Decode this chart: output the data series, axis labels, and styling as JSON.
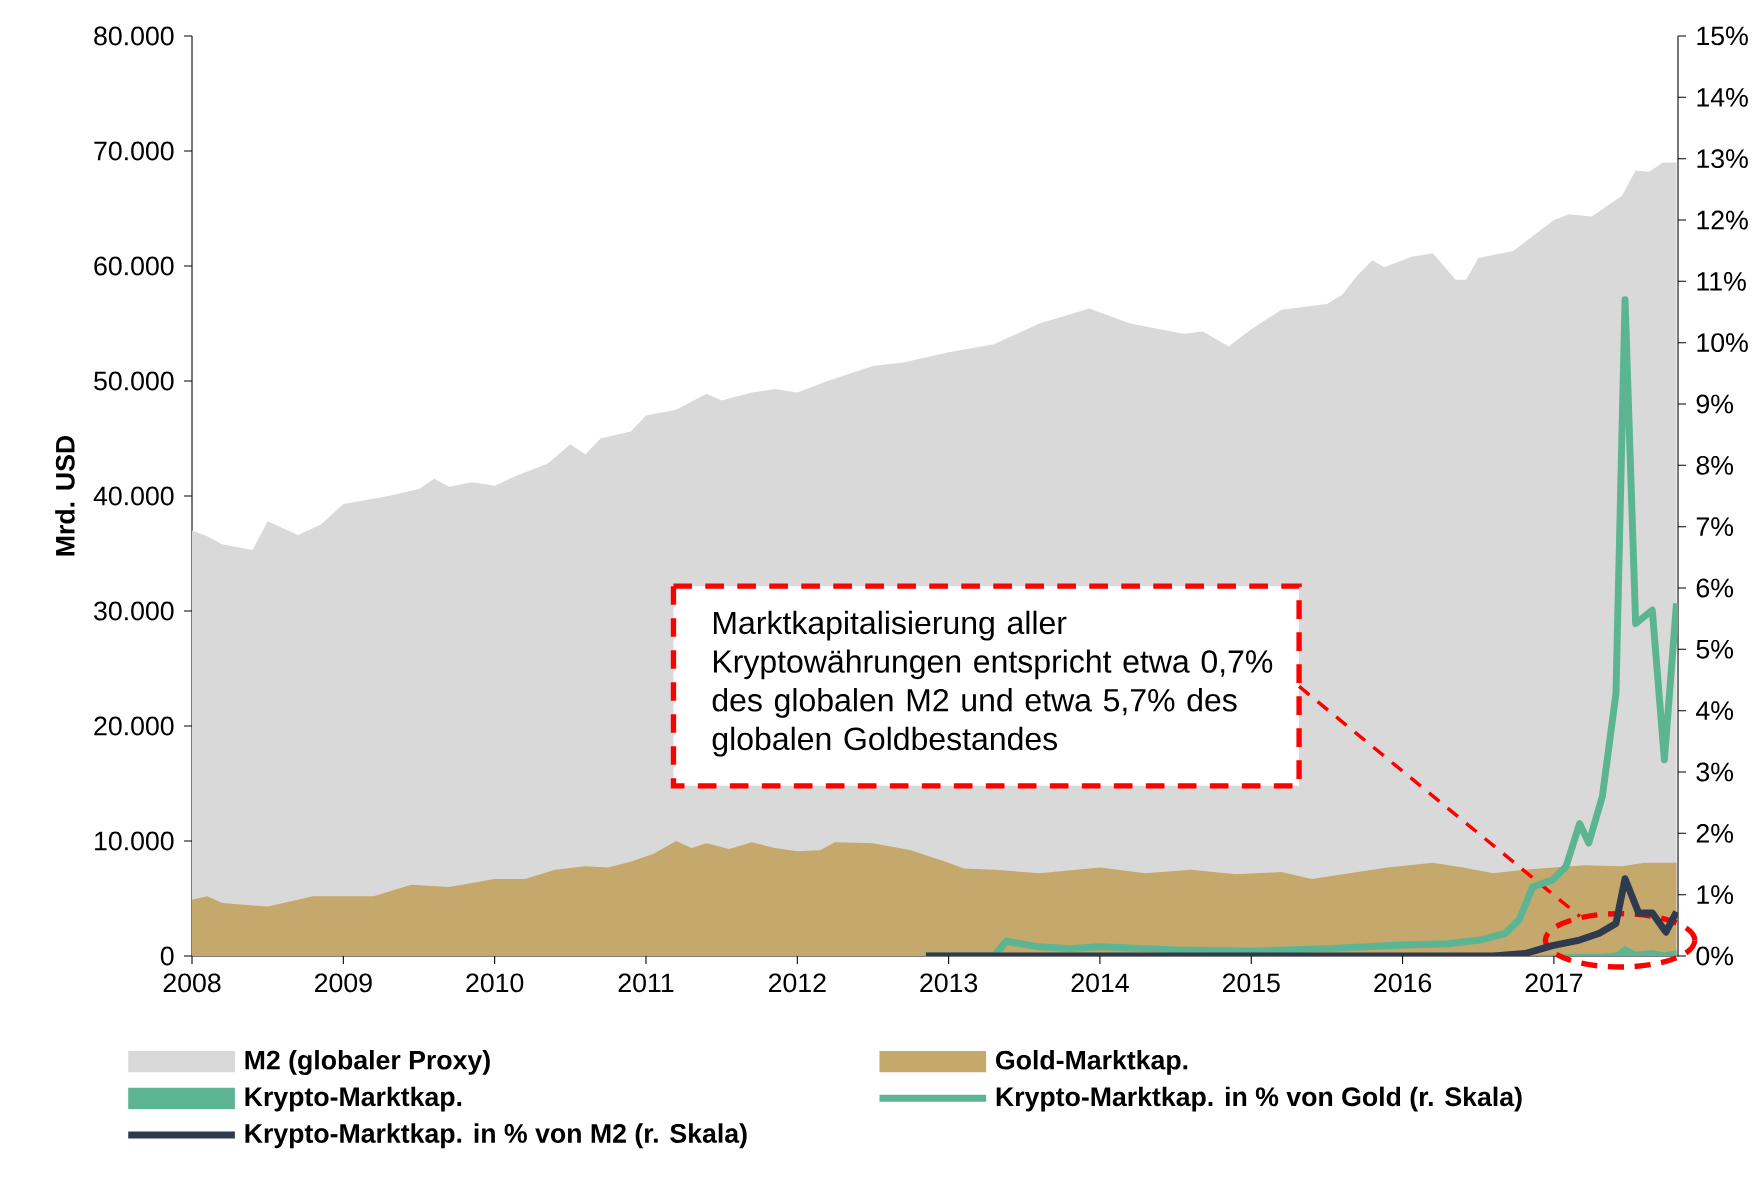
{
  "chart_data": {
    "type": "area",
    "ylabel": "Mrd. USD",
    "xlim": [
      2008,
      2017.82
    ],
    "xticks": [
      2008,
      2009,
      2010,
      2011,
      2012,
      2013,
      2014,
      2015,
      2016,
      2017
    ],
    "ylim": [
      0,
      80000
    ],
    "yticks": [
      {
        "value": 0,
        "label": "0"
      },
      {
        "value": 10000,
        "label": "10.000"
      },
      {
        "value": 20000,
        "label": "20.000"
      },
      {
        "value": 30000,
        "label": "30.000"
      },
      {
        "value": 40000,
        "label": "40.000"
      },
      {
        "value": 50000,
        "label": "50.000"
      },
      {
        "value": 60000,
        "label": "60.000"
      },
      {
        "value": 70000,
        "label": "70.000"
      },
      {
        "value": 80000,
        "label": "80.000"
      }
    ],
    "y2lim": [
      0,
      15
    ],
    "y2ticks": [
      {
        "value": 0,
        "label": "0%"
      },
      {
        "value": 1,
        "label": "1%"
      },
      {
        "value": 2,
        "label": "2%"
      },
      {
        "value": 3,
        "label": "3%"
      },
      {
        "value": 4,
        "label": "4%"
      },
      {
        "value": 5,
        "label": "5%"
      },
      {
        "value": 6,
        "label": "6%"
      },
      {
        "value": 7,
        "label": "7%"
      },
      {
        "value": 8,
        "label": "8%"
      },
      {
        "value": 9,
        "label": "9%"
      },
      {
        "value": 10,
        "label": "10%"
      },
      {
        "value": 11,
        "label": "11%"
      },
      {
        "value": 12,
        "label": "12%"
      },
      {
        "value": 13,
        "label": "13%"
      },
      {
        "value": 14,
        "label": "14%"
      },
      {
        "value": 15,
        "label": "15%"
      }
    ],
    "legend": "bottom",
    "annotations": [
      "Marktkapitalisierung aller Kryptowährungen entspricht etwa 0,7% des globalen M2 und etwa 5,7% des globalen Goldbestandes"
    ],
    "series": [
      {
        "name": "M2 (globaler Proxy)",
        "color": "#d9d9d9",
        "x": [
          2008.0,
          2008.1,
          2008.2,
          2008.4,
          2008.5,
          2008.7,
          2008.85,
          2009.0,
          2009.3,
          2009.5,
          2009.6,
          2009.7,
          2009.85,
          2010.0,
          2010.15,
          2010.35,
          2010.5,
          2010.6,
          2010.7,
          2010.9,
          2011.0,
          2011.2,
          2011.4,
          2011.5,
          2011.7,
          2011.85,
          2012.0,
          2012.2,
          2012.5,
          2012.7,
          2013.0,
          2013.3,
          2013.6,
          2013.93,
          2014.2,
          2014.55,
          2014.68,
          2014.85,
          2015.0,
          2015.2,
          2015.5,
          2015.6,
          2015.71,
          2015.8,
          2015.88,
          2016.06,
          2016.2,
          2016.35,
          2016.42,
          2016.5,
          2016.73,
          2017.0,
          2017.1,
          2017.25,
          2017.45,
          2017.54,
          2017.63,
          2017.72,
          2017.81
        ],
        "values": [
          37000,
          36500,
          35800,
          35300,
          37800,
          36600,
          37500,
          39300,
          40000,
          40600,
          41500,
          40800,
          41200,
          40900,
          41800,
          42800,
          44500,
          43600,
          45000,
          45600,
          47000,
          47500,
          48900,
          48300,
          49000,
          49300,
          49000,
          50000,
          51300,
          51600,
          52500,
          53200,
          55000,
          56300,
          55000,
          54100,
          54300,
          53000,
          54500,
          56200,
          56700,
          57500,
          59300,
          60500,
          59900,
          60800,
          61100,
          58800,
          58800,
          60700,
          61300,
          64000,
          64500,
          64300,
          66100,
          68300,
          68200,
          69000,
          69000
        ]
      },
      {
        "name": "Gold-Marktkap.",
        "color": "#c4a86c",
        "x": [
          2008.0,
          2008.1,
          2008.2,
          2008.5,
          2008.8,
          2009.0,
          2009.2,
          2009.45,
          2009.7,
          2010.0,
          2010.2,
          2010.4,
          2010.6,
          2010.75,
          2010.9,
          2011.05,
          2011.2,
          2011.3,
          2011.4,
          2011.55,
          2011.7,
          2011.85,
          2012.0,
          2012.15,
          2012.25,
          2012.5,
          2012.75,
          2013.0,
          2013.1,
          2013.3,
          2013.6,
          2014.0,
          2014.3,
          2014.6,
          2014.9,
          2015.2,
          2015.4,
          2015.65,
          2015.9,
          2016.2,
          2016.4,
          2016.6,
          2016.8,
          2017.0,
          2017.2,
          2017.45,
          2017.6,
          2017.81
        ],
        "values": [
          4900,
          5200,
          4600,
          4300,
          5200,
          5200,
          5200,
          6200,
          6000,
          6700,
          6700,
          7500,
          7800,
          7700,
          8200,
          8900,
          10000,
          9400,
          9800,
          9300,
          9900,
          9400,
          9100,
          9200,
          9900,
          9800,
          9200,
          8100,
          7600,
          7500,
          7200,
          7700,
          7200,
          7500,
          7100,
          7300,
          6700,
          7200,
          7700,
          8100,
          7700,
          7200,
          7500,
          7700,
          7900,
          7800,
          8100,
          8100
        ]
      },
      {
        "name": "Krypto-Marktkap.",
        "color": "#5bb592",
        "x": [
          2012.85,
          2016.5,
          2016.99,
          2017.17,
          2017.32,
          2017.41,
          2017.47,
          2017.54,
          2017.65,
          2017.73,
          2017.81
        ],
        "values": [
          0,
          0,
          100,
          200,
          200,
          300,
          900,
          400,
          500,
          300,
          500
        ]
      },
      {
        "name": "Krypto-Marktkap. in % von Gold (r. Skala)",
        "type": "line",
        "axis": "y2",
        "color": "#5bb592",
        "x": [
          2012.85,
          2013.3,
          2013.38,
          2013.6,
          2013.8,
          2014.0,
          2014.5,
          2015.0,
          2015.5,
          2016.0,
          2016.3,
          2016.51,
          2016.68,
          2016.77,
          2016.86,
          2016.99,
          2017.08,
          2017.17,
          2017.23,
          2017.32,
          2017.41,
          2017.47,
          2017.54,
          2017.65,
          2017.73,
          2017.81
        ],
        "values": [
          0,
          0,
          0.24,
          0.15,
          0.12,
          0.15,
          0.1,
          0.08,
          0.12,
          0.18,
          0.2,
          0.26,
          0.37,
          0.59,
          1.13,
          1.24,
          1.46,
          2.16,
          1.84,
          2.6,
          4.28,
          10.7,
          5.42,
          5.64,
          3.2,
          5.75
        ]
      },
      {
        "name": "Krypto-Marktkap. in % von M2 (r. Skala)",
        "type": "line",
        "axis": "y2",
        "color": "#2e3a4e",
        "x": [
          2012.85,
          2016.6,
          2016.81,
          2016.99,
          2017.17,
          2017.3,
          2017.41,
          2017.47,
          2017.56,
          2017.65,
          2017.74,
          2017.81
        ],
        "values": [
          0,
          0,
          0.04,
          0.17,
          0.26,
          0.37,
          0.53,
          1.26,
          0.7,
          0.7,
          0.39,
          0.72
        ]
      }
    ]
  }
}
